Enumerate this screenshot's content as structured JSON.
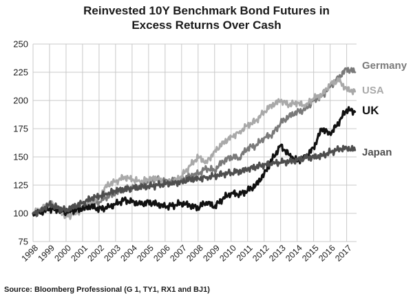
{
  "chart_data": {
    "type": "line",
    "title_lines": [
      "Reinvested 10Y Benchmark Bond Futures in",
      "Excess Returns Over Cash"
    ],
    "xlabel": "",
    "ylabel": "",
    "ylim": [
      75,
      250
    ],
    "xlim": [
      1998,
      2017.6
    ],
    "yticks": [
      75,
      100,
      125,
      150,
      175,
      200,
      225,
      250
    ],
    "xticks": [
      "1998",
      "1999",
      "2000",
      "2001",
      "2002",
      "2003",
      "2004",
      "2005",
      "2006",
      "2007",
      "2008",
      "2009",
      "2010",
      "2011",
      "2012",
      "2013",
      "2014",
      "2015",
      "2016",
      "2017"
    ],
    "grid": true,
    "legend_position": "right-inline",
    "source": "Source: Bloomberg Professional (G 1, TY1, RX1 and BJ1)",
    "series": [
      {
        "name": "Germany",
        "color": "#7a7a7a",
        "x": [
          1998.0,
          1998.5,
          1999.0,
          1999.5,
          2000.0,
          2000.5,
          2001.0,
          2001.5,
          2002.0,
          2002.5,
          2003.0,
          2003.5,
          2004.0,
          2004.5,
          2005.0,
          2005.5,
          2006.0,
          2006.5,
          2007.0,
          2007.5,
          2008.0,
          2008.5,
          2009.0,
          2009.5,
          2010.0,
          2010.5,
          2011.0,
          2011.5,
          2012.0,
          2012.5,
          2013.0,
          2013.5,
          2014.0,
          2014.5,
          2015.0,
          2015.5,
          2016.0,
          2016.5,
          2017.0,
          2017.5
        ],
        "values": [
          100,
          102,
          107,
          104,
          101,
          104,
          106,
          108,
          110,
          115,
          118,
          121,
          123,
          124,
          128,
          131,
          128,
          129,
          130,
          133,
          135,
          140,
          138,
          146,
          150,
          149,
          158,
          160,
          167,
          170,
          180,
          186,
          190,
          192,
          200,
          204,
          212,
          220,
          228,
          225
        ]
      },
      {
        "name": "USA",
        "color": "#a9a9a9",
        "x": [
          1998.0,
          1998.5,
          1999.0,
          1999.5,
          2000.0,
          2000.5,
          2001.0,
          2001.5,
          2002.0,
          2002.5,
          2003.0,
          2003.5,
          2004.0,
          2004.5,
          2005.0,
          2005.5,
          2006.0,
          2006.5,
          2007.0,
          2007.5,
          2008.0,
          2008.5,
          2009.0,
          2009.5,
          2010.0,
          2010.5,
          2011.0,
          2011.5,
          2012.0,
          2012.5,
          2013.0,
          2013.5,
          2014.0,
          2014.5,
          2015.0,
          2015.5,
          2016.0,
          2016.5,
          2017.0,
          2017.5
        ],
        "values": [
          100,
          104,
          110,
          104,
          97,
          100,
          103,
          110,
          114,
          125,
          128,
          132,
          130,
          128,
          130,
          131,
          126,
          128,
          133,
          142,
          150,
          145,
          155,
          162,
          168,
          172,
          178,
          182,
          190,
          196,
          200,
          196,
          198,
          195,
          202,
          205,
          214,
          218,
          210,
          208
        ]
      },
      {
        "name": "UK",
        "color": "#111111",
        "x": [
          1998.0,
          1998.5,
          1999.0,
          1999.5,
          2000.0,
          2000.5,
          2001.0,
          2001.5,
          2002.0,
          2002.5,
          2003.0,
          2003.5,
          2004.0,
          2004.5,
          2005.0,
          2005.5,
          2006.0,
          2006.5,
          2007.0,
          2007.5,
          2008.0,
          2008.5,
          2009.0,
          2009.5,
          2010.0,
          2010.5,
          2011.0,
          2011.5,
          2012.0,
          2012.5,
          2013.0,
          2013.5,
          2014.0,
          2014.5,
          2015.0,
          2015.5,
          2016.0,
          2016.5,
          2017.0,
          2017.5
        ],
        "values": [
          100,
          101,
          104,
          103,
          101,
          103,
          104,
          106,
          104,
          105,
          108,
          112,
          110,
          108,
          110,
          108,
          106,
          107,
          109,
          107,
          105,
          110,
          106,
          113,
          118,
          117,
          120,
          125,
          135,
          148,
          160,
          152,
          146,
          150,
          158,
          175,
          170,
          180,
          192,
          190
        ]
      },
      {
        "name": "Japan",
        "color": "#4e4e4e",
        "x": [
          1998.0,
          1998.5,
          1999.0,
          1999.5,
          2000.0,
          2000.5,
          2001.0,
          2001.5,
          2002.0,
          2002.5,
          2003.0,
          2003.5,
          2004.0,
          2004.5,
          2005.0,
          2005.5,
          2006.0,
          2006.5,
          2007.0,
          2007.5,
          2008.0,
          2008.5,
          2009.0,
          2009.5,
          2010.0,
          2010.5,
          2011.0,
          2011.5,
          2012.0,
          2012.5,
          2013.0,
          2013.5,
          2014.0,
          2014.5,
          2015.0,
          2015.5,
          2016.0,
          2016.5,
          2017.0,
          2017.5
        ],
        "values": [
          100,
          103,
          108,
          105,
          103,
          106,
          109,
          113,
          115,
          117,
          120,
          121,
          122,
          123,
          124,
          125,
          126,
          127,
          128,
          130,
          131,
          132,
          133,
          135,
          136,
          137,
          139,
          141,
          143,
          144,
          145,
          146,
          147,
          149,
          150,
          151,
          154,
          157,
          158,
          156
        ]
      }
    ]
  }
}
